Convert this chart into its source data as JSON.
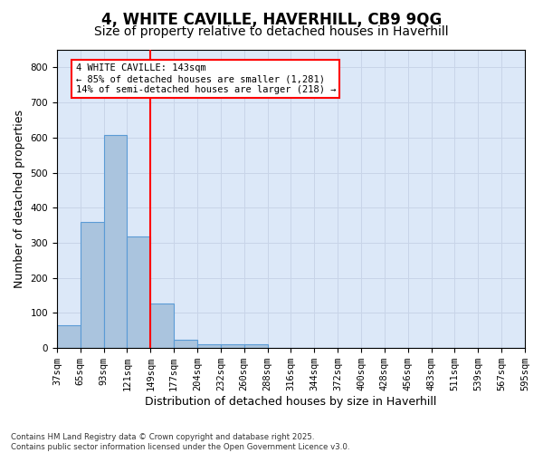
{
  "title1": "4, WHITE CAVILLE, HAVERHILL, CB9 9QG",
  "title2": "Size of property relative to detached houses in Haverhill",
  "xlabel": "Distribution of detached houses by size in Haverhill",
  "ylabel": "Number of detached properties",
  "bins": [
    "37sqm",
    "65sqm",
    "93sqm",
    "121sqm",
    "149sqm",
    "177sqm",
    "204sqm",
    "232sqm",
    "260sqm",
    "288sqm",
    "316sqm",
    "344sqm",
    "372sqm",
    "400sqm",
    "428sqm",
    "456sqm",
    "483sqm",
    "511sqm",
    "539sqm",
    "567sqm",
    "595sqm"
  ],
  "values": [
    65,
    360,
    608,
    318,
    128,
    25,
    10,
    10,
    10,
    0,
    0,
    0,
    0,
    0,
    0,
    0,
    0,
    0,
    0,
    0
  ],
  "bar_color": "#aac4de",
  "bar_edge_color": "#5b9bd5",
  "vline_x": 3.5,
  "vline_color": "red",
  "annotation_text": "4 WHITE CAVILLE: 143sqm\n← 85% of detached houses are smaller (1,281)\n14% of semi-detached houses are larger (218) →",
  "annotation_box_color": "white",
  "annotation_box_edge_color": "red",
  "grid_color": "#c8d4e8",
  "background_color": "#dce8f8",
  "ylim": [
    0,
    850
  ],
  "yticks": [
    0,
    100,
    200,
    300,
    400,
    500,
    600,
    700,
    800
  ],
  "footnote": "Contains HM Land Registry data © Crown copyright and database right 2025.\nContains public sector information licensed under the Open Government Licence v3.0.",
  "title_fontsize": 12,
  "subtitle_fontsize": 10,
  "tick_fontsize": 7.5,
  "label_fontsize": 9
}
